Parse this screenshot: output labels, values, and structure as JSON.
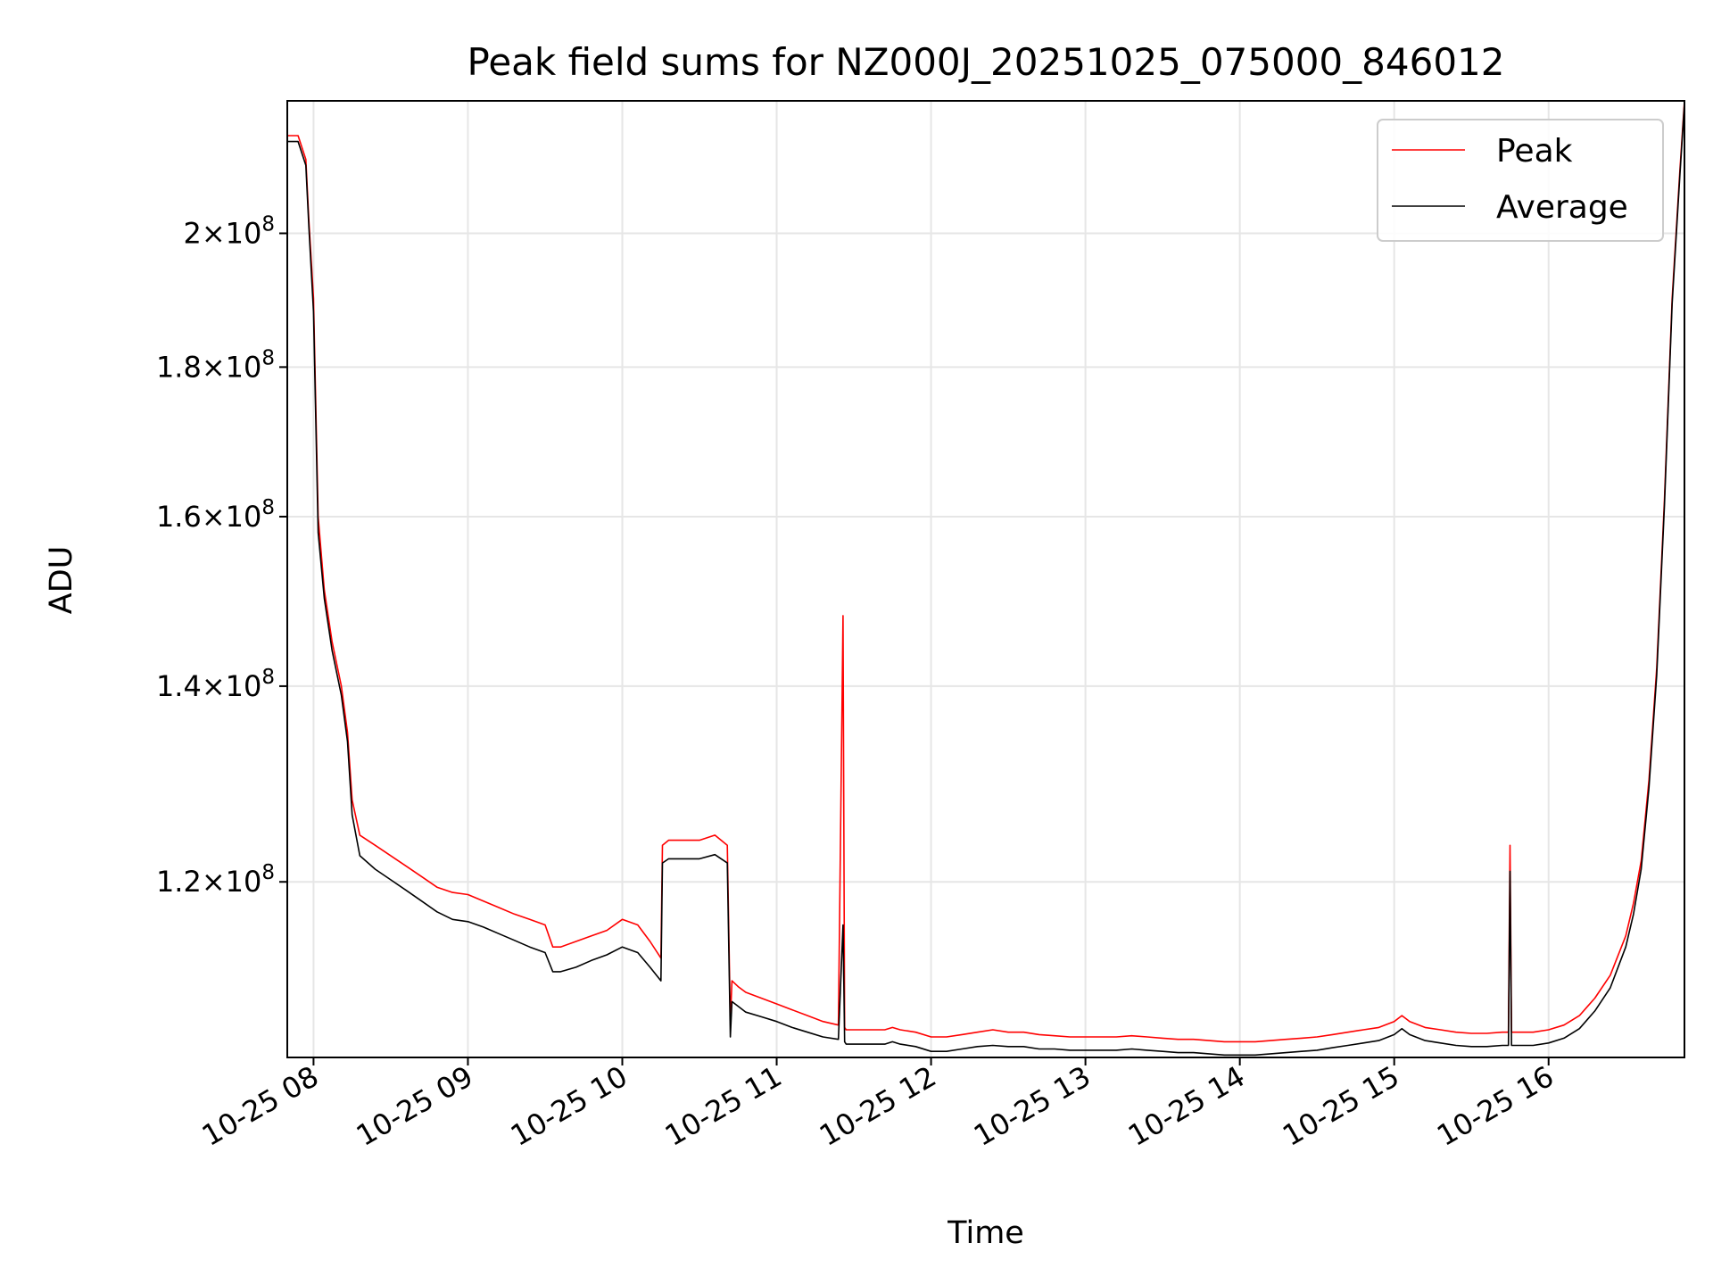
{
  "chart_data": {
    "type": "line",
    "title": "Peak field sums for NZ000J_20251025_075000_846012",
    "xlabel": "Time",
    "ylabel": "ADU",
    "yscale": "log",
    "xlim": [
      7.83,
      16.88
    ],
    "ylim": [
      104500000.0,
      222000000.0
    ],
    "grid": true,
    "legend_position": "upper right",
    "x_ticks": [
      {
        "value": 8,
        "label": "10-25 08"
      },
      {
        "value": 9,
        "label": "10-25 09"
      },
      {
        "value": 10,
        "label": "10-25 10"
      },
      {
        "value": 11,
        "label": "10-25 11"
      },
      {
        "value": 12,
        "label": "10-25 12"
      },
      {
        "value": 13,
        "label": "10-25 13"
      },
      {
        "value": 14,
        "label": "10-25 14"
      },
      {
        "value": 15,
        "label": "10-25 15"
      },
      {
        "value": 16,
        "label": "10-25 16"
      }
    ],
    "y_ticks": [
      {
        "value": 120000000.0,
        "mantissa": "1.2",
        "exponent": "8"
      },
      {
        "value": 140000000.0,
        "mantissa": "1.4",
        "exponent": "8"
      },
      {
        "value": 160000000.0,
        "mantissa": "1.6",
        "exponent": "8"
      },
      {
        "value": 180000000.0,
        "mantissa": "1.8",
        "exponent": "8"
      },
      {
        "value": 200000000.0,
        "mantissa": "2",
        "exponent": "8"
      }
    ],
    "series": [
      {
        "name": "Peak",
        "color": "#ff0000",
        "x": [
          7.83,
          7.9,
          7.95,
          7.97,
          8.0,
          8.03,
          8.07,
          8.12,
          8.18,
          8.22,
          8.25,
          8.3,
          8.4,
          8.5,
          8.6,
          8.7,
          8.8,
          8.9,
          9.0,
          9.1,
          9.2,
          9.3,
          9.4,
          9.5,
          9.55,
          9.6,
          9.7,
          9.8,
          9.9,
          10.0,
          10.1,
          10.18,
          10.25,
          10.26,
          10.3,
          10.4,
          10.5,
          10.6,
          10.68,
          10.7,
          10.71,
          10.75,
          10.8,
          10.9,
          11.0,
          11.1,
          11.2,
          11.3,
          11.4,
          11.43,
          11.44,
          11.45,
          11.5,
          11.6,
          11.7,
          11.75,
          11.8,
          11.9,
          12.0,
          12.1,
          12.2,
          12.3,
          12.4,
          12.5,
          12.6,
          12.7,
          12.8,
          12.9,
          13.0,
          13.1,
          13.2,
          13.3,
          13.4,
          13.5,
          13.6,
          13.7,
          13.8,
          13.9,
          14.0,
          14.1,
          14.2,
          14.3,
          14.4,
          14.5,
          14.6,
          14.7,
          14.8,
          14.9,
          15.0,
          15.05,
          15.1,
          15.2,
          15.3,
          15.4,
          15.5,
          15.6,
          15.7,
          15.74,
          15.75,
          15.76,
          15.8,
          15.9,
          16.0,
          16.1,
          16.2,
          16.3,
          16.4,
          16.5,
          16.55,
          16.6,
          16.65,
          16.7,
          16.75,
          16.8,
          16.85,
          16.88
        ],
        "values": [
          216000000.0,
          216000000.0,
          212000000.0,
          202000000.0,
          190000000.0,
          160000000.0,
          151000000.0,
          145000000.0,
          140000000.0,
          135000000.0,
          128000000.0,
          124500000.0,
          123500000.0,
          122500000.0,
          121500000.0,
          120500000.0,
          119500000.0,
          119000000.0,
          118800000.0,
          118200000.0,
          117600000.0,
          117000000.0,
          116500000.0,
          116000000.0,
          114000000.0,
          114000000.0,
          114500000.0,
          115000000.0,
          115500000.0,
          116500000.0,
          116000000.0,
          114500000.0,
          113000000.0,
          123500000.0,
          124000000.0,
          124000000.0,
          124000000.0,
          124500000.0,
          123500000.0,
          107500000.0,
          111000000.0,
          110500000.0,
          110000000.0,
          109500000.0,
          109000000.0,
          108500000.0,
          108000000.0,
          107500000.0,
          107200000.0,
          148000000.0,
          107000000.0,
          106800000.0,
          106800000.0,
          106800000.0,
          106800000.0,
          107000000.0,
          106800000.0,
          106600000.0,
          106200000.0,
          106200000.0,
          106400000.0,
          106600000.0,
          106800000.0,
          106600000.0,
          106600000.0,
          106400000.0,
          106300000.0,
          106200000.0,
          106200000.0,
          106200000.0,
          106200000.0,
          106300000.0,
          106200000.0,
          106100000.0,
          106000000.0,
          106000000.0,
          105900000.0,
          105800000.0,
          105800000.0,
          105800000.0,
          105900000.0,
          106000000.0,
          106100000.0,
          106200000.0,
          106400000.0,
          106600000.0,
          106800000.0,
          107000000.0,
          107500000.0,
          108000000.0,
          107500000.0,
          107000000.0,
          106800000.0,
          106600000.0,
          106500000.0,
          106500000.0,
          106600000.0,
          106600000.0,
          123500000.0,
          106600000.0,
          106600000.0,
          106600000.0,
          106800000.0,
          107200000.0,
          108000000.0,
          109500000.0,
          111500000.0,
          115000000.0,
          118000000.0,
          122000000.0,
          130000000.0,
          142000000.0,
          162000000.0,
          190000000.0,
          210000000.0,
          222000000.0
        ]
      },
      {
        "name": "Average",
        "color": "#000000",
        "x": [
          7.83,
          7.9,
          7.95,
          7.97,
          8.0,
          8.03,
          8.07,
          8.12,
          8.18,
          8.22,
          8.25,
          8.3,
          8.4,
          8.5,
          8.6,
          8.7,
          8.8,
          8.9,
          9.0,
          9.1,
          9.2,
          9.3,
          9.4,
          9.5,
          9.55,
          9.6,
          9.7,
          9.8,
          9.9,
          10.0,
          10.1,
          10.18,
          10.25,
          10.26,
          10.3,
          10.4,
          10.5,
          10.6,
          10.68,
          10.7,
          10.71,
          10.75,
          10.8,
          10.9,
          11.0,
          11.1,
          11.2,
          11.3,
          11.4,
          11.43,
          11.44,
          11.45,
          11.5,
          11.6,
          11.7,
          11.75,
          11.8,
          11.9,
          12.0,
          12.1,
          12.2,
          12.3,
          12.4,
          12.5,
          12.6,
          12.7,
          12.8,
          12.9,
          13.0,
          13.1,
          13.2,
          13.3,
          13.4,
          13.5,
          13.6,
          13.7,
          13.8,
          13.9,
          14.0,
          14.1,
          14.2,
          14.3,
          14.4,
          14.5,
          14.6,
          14.7,
          14.8,
          14.9,
          15.0,
          15.05,
          15.1,
          15.2,
          15.3,
          15.4,
          15.5,
          15.6,
          15.7,
          15.74,
          15.75,
          15.76,
          15.8,
          15.9,
          16.0,
          16.1,
          16.2,
          16.3,
          16.4,
          16.5,
          16.55,
          16.6,
          16.65,
          16.7,
          16.75,
          16.8,
          16.85,
          16.88
        ],
        "values": [
          215000000.0,
          215000000.0,
          211000000.0,
          201000000.0,
          188000000.0,
          158000000.0,
          150000000.0,
          144000000.0,
          139000000.0,
          134000000.0,
          126500000.0,
          122500000.0,
          121200000.0,
          120200000.0,
          119200000.0,
          118200000.0,
          117200000.0,
          116500000.0,
          116300000.0,
          115800000.0,
          115200000.0,
          114600000.0,
          114000000.0,
          113500000.0,
          111800000.0,
          111800000.0,
          112200000.0,
          112800000.0,
          113300000.0,
          114000000.0,
          113500000.0,
          112200000.0,
          111000000.0,
          121800000.0,
          122200000.0,
          122200000.0,
          122200000.0,
          122600000.0,
          121800000.0,
          106200000.0,
          109200000.0,
          108800000.0,
          108300000.0,
          107900000.0,
          107500000.0,
          107000000.0,
          106600000.0,
          106200000.0,
          106000000.0,
          116000000.0,
          105800000.0,
          105600000.0,
          105600000.0,
          105600000.0,
          105600000.0,
          105800000.0,
          105600000.0,
          105400000.0,
          105000000.0,
          105000000.0,
          105200000.0,
          105400000.0,
          105500000.0,
          105400000.0,
          105400000.0,
          105200000.0,
          105200000.0,
          105100000.0,
          105100000.0,
          105100000.0,
          105100000.0,
          105200000.0,
          105100000.0,
          105000000.0,
          104900000.0,
          104900000.0,
          104800000.0,
          104700000.0,
          104700000.0,
          104700000.0,
          104800000.0,
          104900000.0,
          105000000.0,
          105100000.0,
          105300000.0,
          105500000.0,
          105700000.0,
          105900000.0,
          106400000.0,
          106900000.0,
          106400000.0,
          105900000.0,
          105700000.0,
          105500000.0,
          105400000.0,
          105400000.0,
          105500000.0,
          105500000.0,
          121000000.0,
          105500000.0,
          105500000.0,
          105500000.0,
          105700000.0,
          106100000.0,
          106900000.0,
          108400000.0,
          110400000.0,
          114000000.0,
          117000000.0,
          121200000.0,
          129200000.0,
          141200000.0,
          161200000.0,
          189200000.0,
          209200000.0,
          221500000.0
        ]
      }
    ]
  }
}
